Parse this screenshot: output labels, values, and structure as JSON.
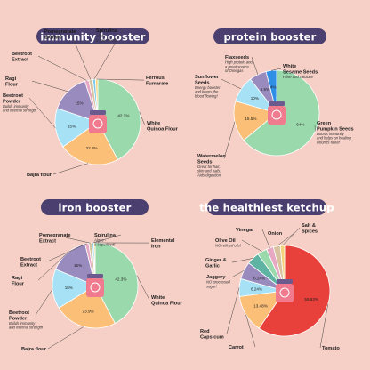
{
  "colors": {
    "background": "#f6cfc6",
    "pill": "#4b3f70",
    "leader": "#444444",
    "jar_body": "#f07a8e",
    "jar_lid": "#6a5a8e"
  },
  "icons": {
    "jar": "jar-icon"
  },
  "chart_data": [
    {
      "type": "pie",
      "title": "immunity booster",
      "slices": [
        {
          "key": "quinoa",
          "label": "White\nQuinoa Flour",
          "note": "",
          "value": 42.3,
          "pct_text": "42.3%",
          "color": "#9ad9ab"
        },
        {
          "key": "bajra",
          "label": "Bajra flour",
          "note": "",
          "value": 22.8,
          "pct_text": "22.8%",
          "color": "#fbbf77"
        },
        {
          "key": "beetroot_powder",
          "label": "Beetroot\nPowder",
          "note": "Builds immunity\nand internal strength",
          "value": 15,
          "pct_text": "15%",
          "color": "#a6e1f5"
        },
        {
          "key": "ragi",
          "label": "Ragi\nFlour",
          "note": "",
          "value": 15,
          "pct_text": "15%",
          "color": "#9a8bbf"
        },
        {
          "key": "beetroot_extract",
          "label": "Beetroot\nExtract",
          "note": "",
          "value": 1.5,
          "pct_text": "",
          "color": "#e6a8c2"
        },
        {
          "key": "pomegranate",
          "label": "Pomegranate\nExtract",
          "note": "",
          "value": 1.5,
          "pct_text": "",
          "color": "#d9c2a0"
        },
        {
          "key": "spirulina",
          "label": "Spirulina",
          "note": "Algae -\na superfood!",
          "value": 1,
          "pct_text": "",
          "color": "#7bc8e8"
        },
        {
          "key": "ferrous",
          "label": "Ferrous\nFumarate",
          "note": "",
          "value": 0.9,
          "pct_text": "",
          "color": "#f3d37a"
        }
      ]
    },
    {
      "type": "pie",
      "title": "protein booster",
      "slices": [
        {
          "key": "pumpkin",
          "label": "Green\nPumpkin Seeds",
          "note": "Boosts immunity\nand helps on healing\nwounds faster",
          "value": 64,
          "pct_text": "64%",
          "color": "#9ad9ab"
        },
        {
          "key": "watermelon",
          "label": "Watermelon\nSeeds",
          "note": "Great for hair,\nskin and nails.\nAids digestion",
          "value": 15.5,
          "pct_text": "15.5%",
          "color": "#fbbf77"
        },
        {
          "key": "sunflower",
          "label": "Sunflower\nSeeds",
          "note": "Energy booster\nand keeps the\nblood flowing!",
          "value": 10,
          "pct_text": "10%",
          "color": "#a6e1f5"
        },
        {
          "key": "flax",
          "label": "Flaxseeds",
          "note": "High protein and\na great source\nof Omegas",
          "value": 6.5,
          "pct_text": "6.5%",
          "color": "#9a8bbf"
        },
        {
          "key": "sesame",
          "label": "White\nSesame Seeds",
          "note": "Fibre and calcium!",
          "value": 4,
          "pct_text": "4%",
          "color": "#2f8fe6"
        }
      ]
    },
    {
      "type": "pie",
      "title": "iron booster",
      "slices": [
        {
          "key": "quinoa",
          "label": "White\nQuinoa Flour",
          "note": "",
          "value": 42.3,
          "pct_text": "42.3%",
          "color": "#9ad9ab"
        },
        {
          "key": "bajra",
          "label": "Bajra flour",
          "note": "",
          "value": 23.9,
          "pct_text": "23.9%",
          "color": "#fbbf77"
        },
        {
          "key": "beetroot_powder",
          "label": "Beetroot\nPowder",
          "note": "Builds immunity\nand internal strength",
          "value": 15,
          "pct_text": "15%",
          "color": "#a6e1f5"
        },
        {
          "key": "ragi",
          "label": "Ragi\nFlour",
          "note": "",
          "value": 15,
          "pct_text": "15%",
          "color": "#9a8bbf"
        },
        {
          "key": "beetroot_extract",
          "label": "Beetroot\nExtract",
          "note": "",
          "value": 1.4,
          "pct_text": "",
          "color": "#e6a8c2"
        },
        {
          "key": "pomegranate",
          "label": "Pomegranate\nExtract",
          "note": "",
          "value": 1.3,
          "pct_text": "",
          "color": "#d9c2a0"
        },
        {
          "key": "spirulina",
          "label": "Spirulina",
          "note": "Algae -\na superfood!",
          "value": 0.6,
          "pct_text": "",
          "color": "#7bc8e8"
        },
        {
          "key": "iron",
          "label": "Elemental\nIron",
          "note": "",
          "value": 0.5,
          "pct_text": "",
          "color": "#f3d37a"
        }
      ]
    },
    {
      "type": "pie",
      "title": "the healthiest ketchup",
      "slices": [
        {
          "key": "tomato",
          "label": "Tomato",
          "note": "",
          "value": 59.53,
          "pct_text": "59.53%",
          "color": "#e8403b"
        },
        {
          "key": "carrot",
          "label": "Carrot",
          "note": "",
          "value": 13.48,
          "pct_text": "13.48%",
          "color": "#fbbf77"
        },
        {
          "key": "capsicum",
          "label": "Red\nCapsicum",
          "note": "",
          "value": 6.24,
          "pct_text": "6.24%",
          "color": "#a6e1f5"
        },
        {
          "key": "jaggery",
          "label": "Jaggery",
          "note": "NO processed\nsugar!",
          "value": 6.24,
          "pct_text": "6.24%",
          "color": "#9a8bbf"
        },
        {
          "key": "ginger",
          "label": "Ginger &\nGarlic",
          "note": "",
          "value": 4.5,
          "pct_text": "",
          "color": "#5fb3a3"
        },
        {
          "key": "olive",
          "label": "Olive Oil",
          "note": "NO refined oils!",
          "value": 3.5,
          "pct_text": "",
          "color": "#9ad9ab"
        },
        {
          "key": "vinegar",
          "label": "Vinegar",
          "note": "",
          "value": 2.5,
          "pct_text": "",
          "color": "#e6a8c2"
        },
        {
          "key": "onion",
          "label": "Onion",
          "note": "",
          "value": 2.5,
          "pct_text": "",
          "color": "#d9c2a0"
        },
        {
          "key": "salt",
          "label": "Salt &\nSpices",
          "note": "",
          "value": 1.51,
          "pct_text": "",
          "color": "#f3d37a"
        }
      ]
    }
  ]
}
